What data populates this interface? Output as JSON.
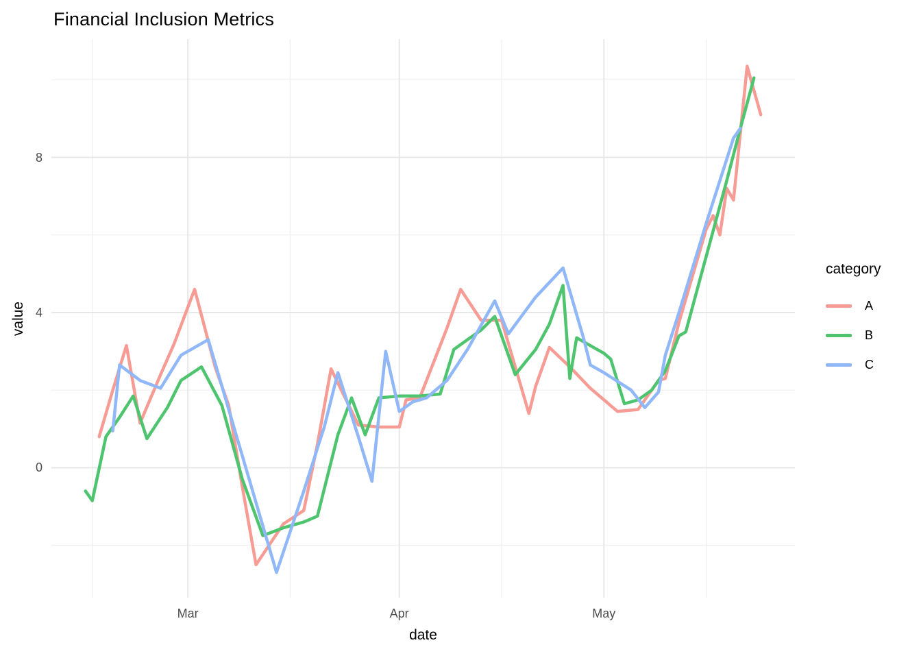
{
  "chart_data": {
    "type": "line",
    "title": "Financial Inclusion Metrics",
    "xlabel": "date",
    "ylabel": "value",
    "legend_title": "category",
    "legend_position": "right",
    "grid": true,
    "background": "#ffffff",
    "grid_color_major": "#e5e5e5",
    "grid_color_minor": "#efefef",
    "tick_label_color": "#4d4d4d",
    "x_tick_labels": [
      "Mar",
      "Apr",
      "May"
    ],
    "y_tick_labels": [
      "0",
      "4",
      "8"
    ],
    "x_domain": [
      "2023-02-09",
      "2023-05-29"
    ],
    "y_domain": [
      -3.35,
      11.05
    ],
    "x_major_gridlines": [
      "2023-03-01",
      "2023-04-01",
      "2023-05-01"
    ],
    "x_minor_gridlines": [
      "2023-02-15",
      "2023-03-16",
      "2023-04-16",
      "2023-05-16"
    ],
    "y_major_gridlines": [
      0,
      4,
      8
    ],
    "y_minor_gridlines": [
      -2,
      2,
      6,
      10
    ],
    "series": [
      {
        "name": "A",
        "color": "#F69C94",
        "points": [
          [
            "2023-02-16",
            0.8
          ],
          [
            "2023-02-18",
            2.0
          ],
          [
            "2023-02-20",
            3.15
          ],
          [
            "2023-02-22",
            1.15
          ],
          [
            "2023-02-25",
            2.4
          ],
          [
            "2023-02-27",
            3.2
          ],
          [
            "2023-03-02",
            4.6
          ],
          [
            "2023-03-05",
            2.6
          ],
          [
            "2023-03-07",
            1.6
          ],
          [
            "2023-03-09",
            -0.5
          ],
          [
            "2023-03-11",
            -2.5
          ],
          [
            "2023-03-15",
            -1.45
          ],
          [
            "2023-03-18",
            -1.1
          ],
          [
            "2023-03-20",
            0.6
          ],
          [
            "2023-03-22",
            2.55
          ],
          [
            "2023-03-26",
            1.1
          ],
          [
            "2023-03-29",
            1.05
          ],
          [
            "2023-04-01",
            1.05
          ],
          [
            "2023-04-02",
            1.75
          ],
          [
            "2023-04-04",
            1.8
          ],
          [
            "2023-04-06",
            2.7
          ],
          [
            "2023-04-08",
            3.6
          ],
          [
            "2023-04-10",
            4.6
          ],
          [
            "2023-04-13",
            3.8
          ],
          [
            "2023-04-16",
            3.8
          ],
          [
            "2023-04-18",
            2.6
          ],
          [
            "2023-04-20",
            1.4
          ],
          [
            "2023-04-21",
            2.1
          ],
          [
            "2023-04-23",
            3.1
          ],
          [
            "2023-04-26",
            2.6
          ],
          [
            "2023-04-29",
            2.05
          ],
          [
            "2023-05-03",
            1.45
          ],
          [
            "2023-05-06",
            1.5
          ],
          [
            "2023-05-09",
            2.25
          ],
          [
            "2023-05-10",
            2.3
          ],
          [
            "2023-05-12",
            3.75
          ],
          [
            "2023-05-14",
            4.95
          ],
          [
            "2023-05-16",
            6.15
          ],
          [
            "2023-05-17",
            6.5
          ],
          [
            "2023-05-18",
            6.0
          ],
          [
            "2023-05-19",
            7.2
          ],
          [
            "2023-05-20",
            6.9
          ],
          [
            "2023-05-22",
            10.35
          ],
          [
            "2023-05-24",
            9.1
          ]
        ]
      },
      {
        "name": "B",
        "color": "#4FC46F",
        "points": [
          [
            "2023-02-14",
            -0.6
          ],
          [
            "2023-02-15",
            -0.85
          ],
          [
            "2023-02-17",
            0.8
          ],
          [
            "2023-02-19",
            1.3
          ],
          [
            "2023-02-21",
            1.85
          ],
          [
            "2023-02-23",
            0.75
          ],
          [
            "2023-02-26",
            1.55
          ],
          [
            "2023-02-28",
            2.25
          ],
          [
            "2023-03-03",
            2.6
          ],
          [
            "2023-03-06",
            1.6
          ],
          [
            "2023-03-09",
            -0.3
          ],
          [
            "2023-03-12",
            -1.75
          ],
          [
            "2023-03-15",
            -1.55
          ],
          [
            "2023-03-18",
            -1.4
          ],
          [
            "2023-03-20",
            -1.25
          ],
          [
            "2023-03-23",
            0.85
          ],
          [
            "2023-03-25",
            1.8
          ],
          [
            "2023-03-27",
            0.85
          ],
          [
            "2023-03-29",
            1.8
          ],
          [
            "2023-04-01",
            1.85
          ],
          [
            "2023-04-04",
            1.85
          ],
          [
            "2023-04-07",
            1.9
          ],
          [
            "2023-04-09",
            3.05
          ],
          [
            "2023-04-11",
            3.3
          ],
          [
            "2023-04-13",
            3.55
          ],
          [
            "2023-04-15",
            3.9
          ],
          [
            "2023-04-18",
            2.4
          ],
          [
            "2023-04-21",
            3.05
          ],
          [
            "2023-04-23",
            3.7
          ],
          [
            "2023-04-25",
            4.7
          ],
          [
            "2023-04-26",
            2.3
          ],
          [
            "2023-04-27",
            3.35
          ],
          [
            "2023-04-30",
            3.05
          ],
          [
            "2023-05-01",
            2.95
          ],
          [
            "2023-05-02",
            2.8
          ],
          [
            "2023-05-04",
            1.65
          ],
          [
            "2023-05-06",
            1.75
          ],
          [
            "2023-05-08",
            2.0
          ],
          [
            "2023-05-10",
            2.5
          ],
          [
            "2023-05-12",
            3.4
          ],
          [
            "2023-05-13",
            3.5
          ],
          [
            "2023-05-15",
            4.8
          ],
          [
            "2023-05-17",
            6.1
          ],
          [
            "2023-05-19",
            7.4
          ],
          [
            "2023-05-21",
            8.75
          ],
          [
            "2023-05-23",
            10.05
          ]
        ]
      },
      {
        "name": "C",
        "color": "#90B7F8",
        "points": [
          [
            "2023-02-18",
            0.95
          ],
          [
            "2023-02-19",
            2.65
          ],
          [
            "2023-02-22",
            2.25
          ],
          [
            "2023-02-25",
            2.05
          ],
          [
            "2023-02-28",
            2.9
          ],
          [
            "2023-03-02",
            3.1
          ],
          [
            "2023-03-04",
            3.3
          ],
          [
            "2023-03-07",
            1.5
          ],
          [
            "2023-03-09",
            0.3
          ],
          [
            "2023-03-11",
            -0.9
          ],
          [
            "2023-03-14",
            -2.7
          ],
          [
            "2023-03-16",
            -1.65
          ],
          [
            "2023-03-18",
            -0.6
          ],
          [
            "2023-03-20",
            0.5
          ],
          [
            "2023-03-21",
            1.05
          ],
          [
            "2023-03-23",
            2.45
          ],
          [
            "2023-03-26",
            0.8
          ],
          [
            "2023-03-28",
            -0.35
          ],
          [
            "2023-03-30",
            3.0
          ],
          [
            "2023-04-01",
            1.45
          ],
          [
            "2023-04-03",
            1.7
          ],
          [
            "2023-04-05",
            1.8
          ],
          [
            "2023-04-08",
            2.25
          ],
          [
            "2023-04-11",
            3.05
          ],
          [
            "2023-04-15",
            4.3
          ],
          [
            "2023-04-17",
            3.45
          ],
          [
            "2023-04-21",
            4.4
          ],
          [
            "2023-04-25",
            5.15
          ],
          [
            "2023-04-28",
            3.35
          ],
          [
            "2023-04-29",
            2.65
          ],
          [
            "2023-05-01",
            2.45
          ],
          [
            "2023-05-05",
            2.0
          ],
          [
            "2023-05-07",
            1.55
          ],
          [
            "2023-05-09",
            1.95
          ],
          [
            "2023-05-10",
            2.9
          ],
          [
            "2023-05-12",
            4.0
          ],
          [
            "2023-05-14",
            5.15
          ],
          [
            "2023-05-16",
            6.3
          ],
          [
            "2023-05-18",
            7.4
          ],
          [
            "2023-05-20",
            8.5
          ],
          [
            "2023-05-21",
            8.75
          ]
        ]
      }
    ]
  }
}
